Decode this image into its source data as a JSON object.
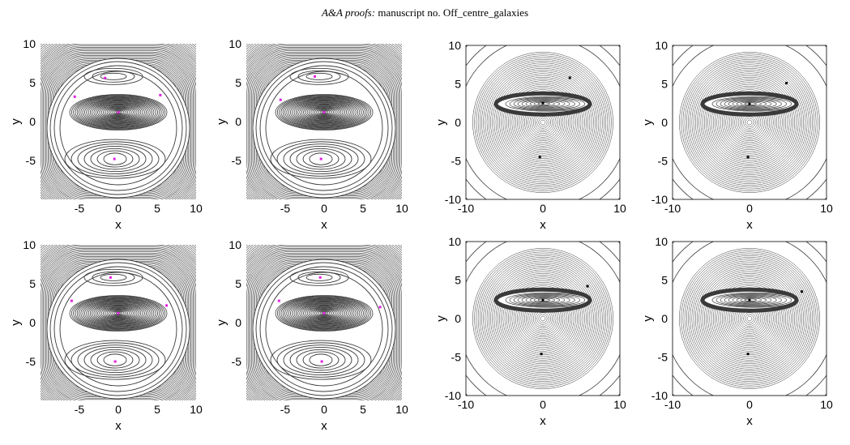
{
  "header": {
    "journal": "A&A proofs:",
    "manuscript": "manuscript no. Off_centre_galaxies"
  },
  "colors": {
    "contour": "#3a3a3a",
    "left_marker": "#e020e0",
    "right_marker": "#000000"
  },
  "chart_data": [
    {
      "id": "left-top-1",
      "type": "contour",
      "xlabel": "x",
      "ylabel": "y",
      "xlim": [
        -10,
        10
      ],
      "ylim": [
        -10,
        10
      ],
      "xticks": [
        "-5",
        "0",
        "5",
        "10"
      ],
      "yticks": [
        "10",
        "5",
        "0",
        "-5"
      ],
      "markers": [
        [
          -1.7,
          5.6
        ],
        [
          -5.6,
          3.2
        ],
        [
          5.4,
          3.4
        ],
        [
          0,
          1.2
        ],
        [
          -0.5,
          -4.8
        ]
      ],
      "marker_color": "left"
    },
    {
      "id": "left-top-2",
      "type": "contour",
      "xlabel": "x",
      "ylabel": "y",
      "xlim": [
        -10,
        10
      ],
      "ylim": [
        -10,
        10
      ],
      "xticks": [
        "-5",
        "0",
        "5",
        "10"
      ],
      "yticks": [
        "10",
        "5",
        "0",
        "-5"
      ],
      "markers": [
        [
          -1.2,
          5.8
        ],
        [
          -5.6,
          2.8
        ],
        [
          0,
          1.2
        ],
        [
          -0.4,
          -4.8
        ]
      ],
      "marker_color": "left"
    },
    {
      "id": "right-top-1",
      "type": "contour",
      "xlabel": "x",
      "ylabel": "y",
      "xlim": [
        -10,
        10
      ],
      "ylim": [
        -10,
        10
      ],
      "xticks": [
        "-10",
        "0",
        "10"
      ],
      "yticks": [
        "10",
        "5",
        "0",
        "-5",
        "-10"
      ],
      "markers": [
        [
          3.5,
          5.8
        ],
        [
          0,
          2.5
        ],
        [
          -0.4,
          -4.5
        ]
      ],
      "marker_color": "right"
    },
    {
      "id": "right-top-2",
      "type": "contour",
      "xlabel": "x",
      "ylabel": "y",
      "xlim": [
        -10,
        10
      ],
      "ylim": [
        -10,
        10
      ],
      "xticks": [
        "-10",
        "0",
        "10"
      ],
      "yticks": [
        "10",
        "5",
        "0",
        "-5",
        "-10"
      ],
      "markers": [
        [
          4.8,
          5.1
        ],
        [
          0,
          2.4
        ],
        [
          -0.2,
          -4.5
        ]
      ],
      "marker_color": "right"
    },
    {
      "id": "left-bottom-1",
      "type": "contour",
      "xlabel": "x",
      "ylabel": "y",
      "xlim": [
        -10,
        10
      ],
      "ylim": [
        -10,
        10
      ],
      "xticks": [
        "-5",
        "0",
        "5",
        "10"
      ],
      "yticks": [
        "10",
        "5",
        "0",
        "-5"
      ],
      "markers": [
        [
          -1.0,
          5.8
        ],
        [
          -6.0,
          2.8
        ],
        [
          6.2,
          2.2
        ],
        [
          0,
          1.2
        ],
        [
          -0.4,
          -5.0
        ]
      ],
      "marker_color": "left"
    },
    {
      "id": "left-bottom-2",
      "type": "contour",
      "xlabel": "x",
      "ylabel": "y",
      "xlim": [
        -10,
        10
      ],
      "ylim": [
        -10,
        10
      ],
      "xticks": [
        "-5",
        "0",
        "5",
        "10"
      ],
      "yticks": [
        "10",
        "5",
        "0",
        "-5"
      ],
      "markers": [
        [
          -0.5,
          5.8
        ],
        [
          -5.8,
          2.8
        ],
        [
          7.2,
          2.0
        ],
        [
          0,
          1.2
        ],
        [
          -0.3,
          -5.0
        ]
      ],
      "marker_color": "left"
    },
    {
      "id": "right-bottom-1",
      "type": "contour",
      "xlabel": "x",
      "ylabel": "y",
      "xlim": [
        -10,
        10
      ],
      "ylim": [
        -10,
        10
      ],
      "xticks": [
        "-10",
        "0",
        "10"
      ],
      "yticks": [
        "10",
        "5",
        "0",
        "-5",
        "-10"
      ],
      "markers": [
        [
          5.8,
          4.2
        ],
        [
          0,
          2.4
        ],
        [
          -0.2,
          -4.6
        ]
      ],
      "marker_color": "right"
    },
    {
      "id": "right-bottom-2",
      "type": "contour",
      "xlabel": "x",
      "ylabel": "y",
      "xlim": [
        -10,
        10
      ],
      "ylim": [
        -10,
        10
      ],
      "xticks": [
        "-10",
        "0",
        "10"
      ],
      "yticks": [
        "10",
        "5",
        "0",
        "-5",
        "-10"
      ],
      "markers": [
        [
          6.8,
          3.5
        ],
        [
          0,
          2.4
        ],
        [
          -0.2,
          -4.6
        ]
      ],
      "marker_color": "right"
    }
  ]
}
